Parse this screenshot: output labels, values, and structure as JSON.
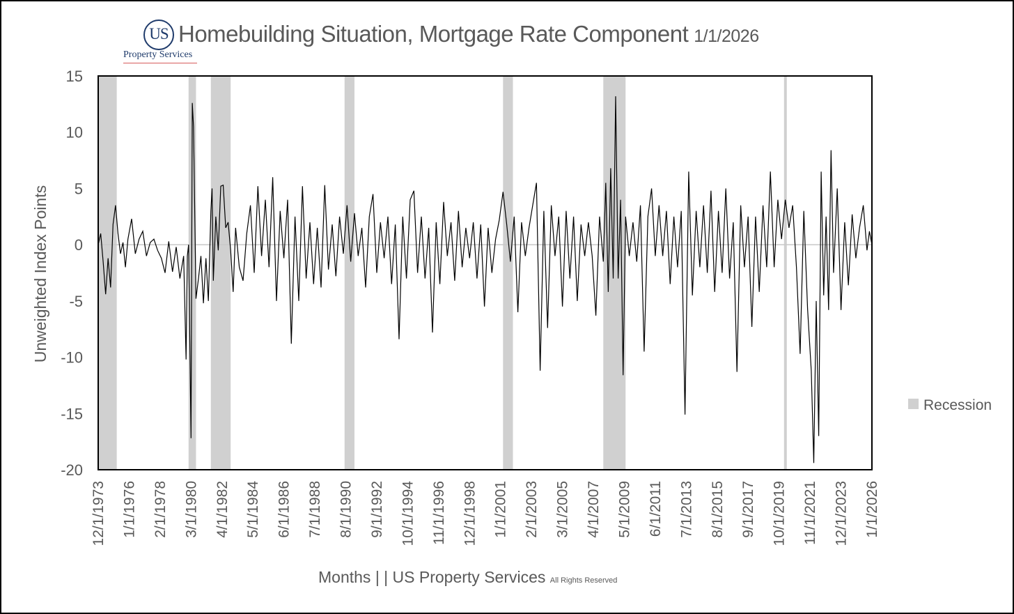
{
  "header": {
    "logo_mark": "US",
    "logo_text": "Property Services",
    "title": "Homebuilding Situation, Mortgage Rate Component",
    "title_date": "1/1/2026"
  },
  "footer": {
    "x_title": "Months |  | US Property Services",
    "rights": "All Rights Reserved"
  },
  "chart_data": {
    "type": "line",
    "title": "Homebuilding Situation, Mortgage Rate Component",
    "ylabel": "Unweighted Index Points",
    "xlabel": "Months |  | US Property Services",
    "xlim": [
      "12/1/1973",
      "1/1/2026"
    ],
    "ylim": [
      -20,
      15
    ],
    "yticks": [
      15,
      10,
      5,
      0,
      -5,
      -10,
      -15,
      -20
    ],
    "xticks": [
      "12/1/1973",
      "1/1/1976",
      "2/1/1978",
      "3/1/1980",
      "4/1/1982",
      "5/1/1984",
      "6/1/1986",
      "7/1/1988",
      "8/1/1990",
      "9/1/1992",
      "10/1/1994",
      "11/1/1996",
      "12/1/1998",
      "1/1/2001",
      "2/1/2003",
      "3/1/2005",
      "4/1/2007",
      "5/1/2009",
      "6/1/2011",
      "7/1/2013",
      "8/1/2015",
      "9/1/2017",
      "10/1/2019",
      "11/1/2021",
      "12/1/2023",
      "1/1/2026"
    ],
    "legend": {
      "position": "right",
      "entries": [
        {
          "name": "Recession",
          "color": "#d0d0d0"
        }
      ]
    },
    "recessions": [
      [
        "12/1/1973",
        "3/1/1975"
      ],
      [
        "1/1/1980",
        "7/1/1980"
      ],
      [
        "7/1/1981",
        "11/1/1982"
      ],
      [
        "7/1/1990",
        "3/1/1991"
      ],
      [
        "3/1/2001",
        "11/1/2001"
      ],
      [
        "12/1/2007",
        "6/1/2009"
      ],
      [
        "2/1/2020",
        "4/1/2020"
      ]
    ],
    "series": [
      {
        "color": "#000000",
        "points": [
          [
            "12/1/1973",
            0
          ],
          [
            "2/1/1974",
            1.0
          ],
          [
            "4/1/1974",
            -1.5
          ],
          [
            "6/1/1974",
            -4.4
          ],
          [
            "8/1/1974",
            -1.2
          ],
          [
            "10/1/1974",
            -3.8
          ],
          [
            "12/1/1974",
            1.8
          ],
          [
            "2/1/1975",
            3.5
          ],
          [
            "4/1/1975",
            1.0
          ],
          [
            "6/1/1975",
            -0.8
          ],
          [
            "8/1/1975",
            0.2
          ],
          [
            "10/1/1975",
            -2.0
          ],
          [
            "12/1/1975",
            0.5
          ],
          [
            "3/1/1976",
            2.3
          ],
          [
            "6/1/1976",
            -0.8
          ],
          [
            "9/1/1976",
            0.5
          ],
          [
            "12/1/1976",
            1.2
          ],
          [
            "3/1/1977",
            -1.0
          ],
          [
            "6/1/1977",
            0.2
          ],
          [
            "9/1/1977",
            0.5
          ],
          [
            "12/1/1977",
            -0.5
          ],
          [
            "3/1/1978",
            -1.2
          ],
          [
            "6/1/1978",
            -2.5
          ],
          [
            "9/1/1978",
            0.3
          ],
          [
            "12/1/1978",
            -2.4
          ],
          [
            "3/1/1979",
            -0.2
          ],
          [
            "6/1/1979",
            -3.0
          ],
          [
            "9/1/1979",
            -1.0
          ],
          [
            "11/1/1979",
            -10.2
          ],
          [
            "12/1/1979",
            -1.0
          ],
          [
            "1/1/1980",
            0.0
          ],
          [
            "3/1/1980",
            -17.2
          ],
          [
            "4/1/1980",
            12.6
          ],
          [
            "5/1/1980",
            10.5
          ],
          [
            "7/1/1980",
            -4.8
          ],
          [
            "9/1/1980",
            -3.0
          ],
          [
            "11/1/1980",
            -1.0
          ],
          [
            "1/1/1981",
            -5.2
          ],
          [
            "3/1/1981",
            -1.2
          ],
          [
            "5/1/1981",
            -5.0
          ],
          [
            "7/1/1981",
            3.0
          ],
          [
            "8/1/1981",
            5.0
          ],
          [
            "9/1/1981",
            -3.2
          ],
          [
            "11/1/1981",
            2.5
          ],
          [
            "1/1/1982",
            -0.5
          ],
          [
            "3/1/1982",
            5.2
          ],
          [
            "5/1/1982",
            5.3
          ],
          [
            "7/1/1982",
            1.5
          ],
          [
            "9/1/1982",
            2.0
          ],
          [
            "11/1/1982",
            -0.5
          ],
          [
            "1/1/1983",
            -4.2
          ],
          [
            "3/1/1983",
            1.5
          ],
          [
            "6/1/1983",
            -2.0
          ],
          [
            "9/1/1983",
            -3.2
          ],
          [
            "12/1/1983",
            1.0
          ],
          [
            "3/1/1984",
            3.5
          ],
          [
            "6/1/1984",
            -2.5
          ],
          [
            "9/1/1984",
            5.2
          ],
          [
            "12/1/1984",
            -1.0
          ],
          [
            "3/1/1985",
            4.0
          ],
          [
            "6/1/1985",
            -2.0
          ],
          [
            "9/1/1985",
            6.0
          ],
          [
            "12/1/1985",
            -5.0
          ],
          [
            "3/1/1986",
            3.0
          ],
          [
            "6/1/1986",
            -1.2
          ],
          [
            "9/1/1986",
            4.0
          ],
          [
            "12/1/1986",
            -8.8
          ],
          [
            "3/1/1987",
            2.5
          ],
          [
            "6/1/1987",
            -5.0
          ],
          [
            "9/1/1987",
            5.2
          ],
          [
            "12/1/1987",
            -3.0
          ],
          [
            "3/1/1988",
            2.0
          ],
          [
            "6/1/1988",
            -3.5
          ],
          [
            "9/1/1988",
            1.5
          ],
          [
            "12/1/1988",
            -3.8
          ],
          [
            "3/1/1989",
            5.3
          ],
          [
            "6/1/1989",
            -2.2
          ],
          [
            "9/1/1989",
            1.8
          ],
          [
            "12/1/1989",
            -2.8
          ],
          [
            "3/1/1990",
            2.5
          ],
          [
            "6/1/1990",
            -0.8
          ],
          [
            "9/1/1990",
            3.5
          ],
          [
            "12/1/1990",
            -1.5
          ],
          [
            "3/1/1991",
            2.8
          ],
          [
            "6/1/1991",
            -1.0
          ],
          [
            "9/1/1991",
            1.5
          ],
          [
            "12/1/1991",
            -3.8
          ],
          [
            "3/1/1992",
            2.5
          ],
          [
            "6/1/1992",
            4.5
          ],
          [
            "9/1/1992",
            -2.5
          ],
          [
            "12/1/1992",
            2.0
          ],
          [
            "3/1/1993",
            -1.2
          ],
          [
            "6/1/1993",
            2.5
          ],
          [
            "9/1/1993",
            -3.5
          ],
          [
            "12/1/1993",
            1.8
          ],
          [
            "3/1/1994",
            -8.4
          ],
          [
            "6/1/1994",
            2.5
          ],
          [
            "9/1/1994",
            -3.0
          ],
          [
            "12/1/1994",
            4.0
          ],
          [
            "3/1/1995",
            4.8
          ],
          [
            "6/1/1995",
            -2.5
          ],
          [
            "9/1/1995",
            2.5
          ],
          [
            "12/1/1995",
            -3.0
          ],
          [
            "3/1/1996",
            1.5
          ],
          [
            "6/1/1996",
            -7.8
          ],
          [
            "9/1/1996",
            2.0
          ],
          [
            "12/1/1996",
            -3.5
          ],
          [
            "3/1/1997",
            3.8
          ],
          [
            "6/1/1997",
            -1.0
          ],
          [
            "9/1/1997",
            2.0
          ],
          [
            "12/1/1997",
            -3.2
          ],
          [
            "3/1/1998",
            3.0
          ],
          [
            "6/1/1998",
            -2.0
          ],
          [
            "9/1/1998",
            1.5
          ],
          [
            "12/1/1998",
            -1.2
          ],
          [
            "3/1/1999",
            2.0
          ],
          [
            "6/1/1999",
            -3.0
          ],
          [
            "9/1/1999",
            1.8
          ],
          [
            "12/1/1999",
            -5.5
          ],
          [
            "3/1/2000",
            1.5
          ],
          [
            "6/1/2000",
            -2.5
          ],
          [
            "9/1/2000",
            0.5
          ],
          [
            "12/1/2000",
            2.2
          ],
          [
            "3/1/2001",
            4.7
          ],
          [
            "6/1/2001",
            1.8
          ],
          [
            "9/1/2001",
            -1.5
          ],
          [
            "12/1/2001",
            2.5
          ],
          [
            "3/1/2002",
            -6.0
          ],
          [
            "6/1/2002",
            2.0
          ],
          [
            "9/1/2002",
            -1.0
          ],
          [
            "12/1/2002",
            1.5
          ],
          [
            "3/1/2003",
            3.5
          ],
          [
            "6/1/2003",
            5.5
          ],
          [
            "9/1/2003",
            -11.2
          ],
          [
            "12/1/2003",
            3.0
          ],
          [
            "3/1/2004",
            -7.4
          ],
          [
            "6/1/2004",
            3.5
          ],
          [
            "9/1/2004",
            -1.0
          ],
          [
            "12/1/2004",
            2.5
          ],
          [
            "3/1/2005",
            -5.5
          ],
          [
            "6/1/2005",
            3.0
          ],
          [
            "9/1/2005",
            -3.0
          ],
          [
            "12/1/2005",
            2.5
          ],
          [
            "3/1/2006",
            -5.0
          ],
          [
            "6/1/2006",
            1.8
          ],
          [
            "9/1/2006",
            -1.0
          ],
          [
            "12/1/2006",
            2.0
          ],
          [
            "3/1/2007",
            -1.0
          ],
          [
            "6/1/2007",
            -6.3
          ],
          [
            "9/1/2007",
            2.5
          ],
          [
            "12/1/2007",
            -1.5
          ],
          [
            "2/1/2008",
            5.5
          ],
          [
            "4/1/2008",
            -4.2
          ],
          [
            "6/1/2008",
            6.8
          ],
          [
            "8/1/2008",
            -3.0
          ],
          [
            "10/1/2008",
            13.2
          ],
          [
            "12/1/2008",
            -3.0
          ],
          [
            "2/1/2009",
            4.0
          ],
          [
            "4/1/2009",
            -11.6
          ],
          [
            "6/1/2009",
            2.5
          ],
          [
            "9/1/2009",
            -1.0
          ],
          [
            "12/1/2009",
            2.0
          ],
          [
            "3/1/2010",
            -1.5
          ],
          [
            "6/1/2010",
            3.5
          ],
          [
            "9/1/2010",
            -9.5
          ],
          [
            "12/1/2010",
            2.5
          ],
          [
            "3/1/2011",
            5.0
          ],
          [
            "6/1/2011",
            -1.0
          ],
          [
            "9/1/2011",
            3.5
          ],
          [
            "12/1/2011",
            -1.0
          ],
          [
            "3/1/2012",
            3.0
          ],
          [
            "6/1/2012",
            -3.5
          ],
          [
            "9/1/2012",
            2.5
          ],
          [
            "12/1/2012",
            -2.0
          ],
          [
            "3/1/2013",
            3.0
          ],
          [
            "6/1/2013",
            -15.1
          ],
          [
            "9/1/2013",
            6.5
          ],
          [
            "12/1/2013",
            -4.5
          ],
          [
            "3/1/2014",
            3.0
          ],
          [
            "6/1/2014",
            -2.0
          ],
          [
            "9/1/2014",
            3.5
          ],
          [
            "12/1/2014",
            -2.5
          ],
          [
            "3/1/2015",
            4.8
          ],
          [
            "6/1/2015",
            -4.2
          ],
          [
            "9/1/2015",
            3.0
          ],
          [
            "12/1/2015",
            -2.5
          ],
          [
            "3/1/2016",
            5.0
          ],
          [
            "6/1/2016",
            -3.0
          ],
          [
            "9/1/2016",
            2.0
          ],
          [
            "12/1/2016",
            -11.3
          ],
          [
            "3/1/2017",
            3.5
          ],
          [
            "6/1/2017",
            -2.0
          ],
          [
            "9/1/2017",
            2.5
          ],
          [
            "12/1/2017",
            -7.3
          ],
          [
            "3/1/2018",
            2.5
          ],
          [
            "6/1/2018",
            -4.2
          ],
          [
            "9/1/2018",
            3.5
          ],
          [
            "12/1/2018",
            -2.0
          ],
          [
            "3/1/2019",
            6.5
          ],
          [
            "6/1/2019",
            -2.0
          ],
          [
            "9/1/2019",
            4.0
          ],
          [
            "12/1/2019",
            0.5
          ],
          [
            "3/1/2020",
            4.0
          ],
          [
            "6/1/2020",
            1.5
          ],
          [
            "9/1/2020",
            3.5
          ],
          [
            "12/1/2020",
            -2.0
          ],
          [
            "3/1/2021",
            -9.7
          ],
          [
            "6/1/2021",
            3.0
          ],
          [
            "9/1/2021",
            -5.7
          ],
          [
            "12/1/2021",
            -11.2
          ],
          [
            "2/1/2022",
            -19.4
          ],
          [
            "4/1/2022",
            -5.0
          ],
          [
            "6/1/2022",
            -17.0
          ],
          [
            "8/1/2022",
            6.5
          ],
          [
            "10/1/2022",
            -4.5
          ],
          [
            "12/1/2022",
            2.5
          ],
          [
            "2/1/2023",
            -5.8
          ],
          [
            "4/1/2023",
            8.4
          ],
          [
            "6/1/2023",
            -2.5
          ],
          [
            "9/1/2023",
            5.0
          ],
          [
            "12/1/2023",
            -5.8
          ],
          [
            "3/1/2024",
            2.0
          ],
          [
            "6/1/2024",
            -3.6
          ],
          [
            "9/1/2024",
            2.7
          ],
          [
            "12/1/2024",
            -1.2
          ],
          [
            "3/1/2025",
            1.5
          ],
          [
            "6/1/2025",
            3.5
          ],
          [
            "9/1/2025",
            -0.5
          ],
          [
            "11/1/2025",
            1.2
          ],
          [
            "1/1/2026",
            0.0
          ]
        ]
      }
    ]
  }
}
